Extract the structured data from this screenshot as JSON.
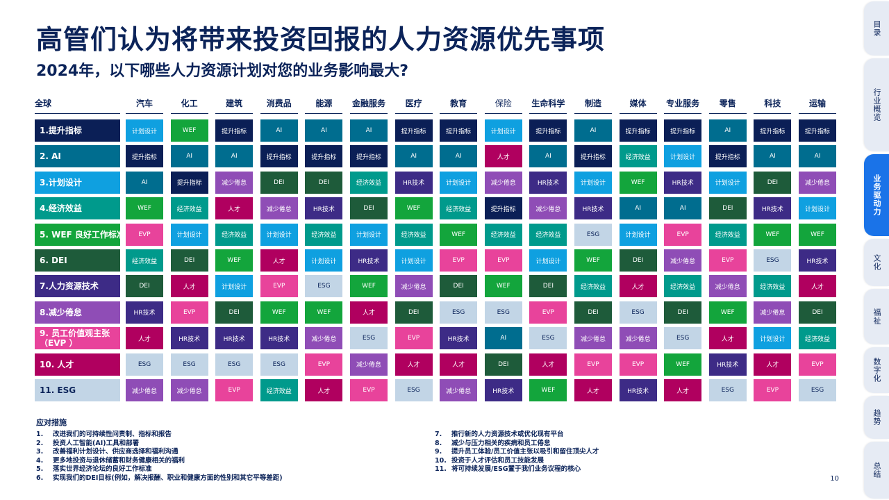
{
  "title": "高管们认为将带来投资回报的人力资源优先事项",
  "subtitle": "2024年，以下哪些人力资源计划对您的业务影响最大?",
  "table": {
    "corner": "全球",
    "columns": [
      "汽车",
      "化工",
      "建筑",
      "消费品",
      "能源",
      "金融服务",
      "医疗",
      "教育",
      "保险",
      "生命科学",
      "制造",
      "媒体",
      "专业服务",
      "零售",
      "科技",
      "运输"
    ],
    "rows": [
      {
        "label": "1.提升指标",
        "cells": [
          "计划设计",
          "WEF",
          "提升指标",
          "AI",
          "AI",
          "AI",
          "提升指标",
          "提升指标",
          "计划设计",
          "提升指标",
          "AI",
          "提升指标",
          "提升指标",
          "AI",
          "提升指标",
          "提升指标"
        ]
      },
      {
        "label": "2. AI",
        "cells": [
          "提升指标",
          "AI",
          "AI",
          "提升指标",
          "提升指标",
          "提升指标",
          "AI",
          "AI",
          "人才",
          "AI",
          "提升指标",
          "经济效益",
          "计划设计",
          "提升指标",
          "AI",
          "AI"
        ]
      },
      {
        "label": "3.计划设计",
        "cells": [
          "AI",
          "提升指标",
          "减少倦怠",
          "DEI",
          "DEI",
          "经济效益",
          "HR技术",
          "计划设计",
          "减少倦怠",
          "HR技术",
          "计划设计",
          "WEF",
          "HR技术",
          "计划设计",
          "DEI",
          "减少倦怠"
        ]
      },
      {
        "label": "4.经济效益",
        "cells": [
          "WEF",
          "经济效益",
          "人才",
          "减少倦怠",
          "HR技术",
          "DEI",
          "WEF",
          "经济效益",
          "提升指标",
          "减少倦怠",
          "HR技术",
          "AI",
          "AI",
          "DEI",
          "HR技术",
          "计划设计"
        ]
      },
      {
        "label": "5. WEF 良好工作标准",
        "cells": [
          "EVP",
          "计划设计",
          "经济效益",
          "计划设计",
          "经济效益",
          "计划设计",
          "经济效益",
          "WEF",
          "经济效益",
          "经济效益",
          "ESG",
          "计划设计",
          "EVP",
          "经济效益",
          "WEF",
          "WEF"
        ]
      },
      {
        "label": "6. DEI",
        "cells": [
          "经济效益",
          "DEI",
          "WEF",
          "人才",
          "计划设计",
          "HR技术",
          "计划设计",
          "EVP",
          "EVP",
          "计划设计",
          "WEF",
          "DEI",
          "减少倦怠",
          "EVP",
          "ESG",
          "HR技术"
        ]
      },
      {
        "label": "7.人力资源技术",
        "cells": [
          "DEI",
          "人才",
          "计划设计",
          "EVP",
          "ESG",
          "WEF",
          "减少倦怠",
          "DEI",
          "WEF",
          "DEI",
          "经济效益",
          "人才",
          "经济效益",
          "减少倦怠",
          "经济效益",
          "人才"
        ]
      },
      {
        "label": "8.减少倦怠",
        "cells": [
          "HR技术",
          "EVP",
          "DEI",
          "WEF",
          "WEF",
          "人才",
          "DEI",
          "ESG",
          "ESG",
          "EVP",
          "DEI",
          "ESG",
          "DEI",
          "WEF",
          "减少倦怠",
          "DEI"
        ]
      },
      {
        "label_line1": "9. 员工价值观主张",
        "label_line2": "（EVP ）",
        "cells": [
          "人才",
          "HR技术",
          "HR技术",
          "HR技术",
          "减少倦怠",
          "ESG",
          "EVP",
          "HR技术",
          "AI",
          "ESG",
          "减少倦怠",
          "减少倦怠",
          "ESG",
          "人才",
          "计划设计",
          "经济效益"
        ]
      },
      {
        "label": "10. 人才",
        "cells": [
          "ESG",
          "ESG",
          "ESG",
          "ESG",
          "EVP",
          "减少倦怠",
          "人才",
          "人才",
          "DEI",
          "人才",
          "EVP",
          "EVP",
          "WEF",
          "HR技术",
          "人才",
          "EVP"
        ]
      },
      {
        "label": "11. ESG",
        "cells": [
          "减少倦怠",
          "减少倦怠",
          "EVP",
          "经济效益",
          "人才",
          "EVP",
          "ESG",
          "减少倦怠",
          "HR技术",
          "WEF",
          "人才",
          "HR技术",
          "人才",
          "ESG",
          "EVP",
          "ESG"
        ]
      }
    ]
  },
  "colors": {
    "提升指标": "#0b1f56",
    "AI": "#006d8f",
    "计划设计": "#0fa0e0",
    "经济效益": "#009a8c",
    "WEF": "#13a53c",
    "DEI": "#1e5b3a",
    "HR技术": "#3d2b86",
    "减少倦怠": "#8f4db6",
    "EVP": "#e8439b",
    "人才": "#b0005f",
    "ESG": "#c2d5e6"
  },
  "row_label_colors": [
    "#0b1f56",
    "#006d8f",
    "#0fa0e0",
    "#009a8c",
    "#13a53c",
    "#1e5b3a",
    "#3d2b86",
    "#8f4db6",
    "#e8439b",
    "#b0005f",
    "#c2d5e6"
  ],
  "notes": {
    "title": "应对措施",
    "left": [
      {
        "num": "1.",
        "text": "改进我们的可持续性问责制、指标和报告"
      },
      {
        "num": "2.",
        "text": "投资人工智能(AI)工具和部署"
      },
      {
        "num": "3.",
        "text": "改善福利计划设计、供应商选择和福利沟通"
      },
      {
        "num": "4.",
        "text": "更多地投资与退休储蓄和财务健康相关的福利"
      },
      {
        "num": "5.",
        "text": "落实世界经济论坛的良好工作标准"
      },
      {
        "num": "6.",
        "text": "实现我们的DEI目标(例如，解决报酬、职业和健康方面的性别和其它平等差距)"
      }
    ],
    "right": [
      {
        "num": "7.",
        "text": "推行新的人力资源技术或优化现有平台"
      },
      {
        "num": "8.",
        "text": "减少与压力相关的疾病和员工倦怠"
      },
      {
        "num": "9.",
        "text": "提升员工体验/员工价值主张以吸引和留住顶尖人才"
      },
      {
        "num": "10.",
        "text": "投资于人才评估和员工技能发展"
      },
      {
        "num": "11.",
        "text": "将可持续发展/ESG置于我们业务议程的核心"
      }
    ]
  },
  "page_number": "10",
  "side_tabs": [
    {
      "label": "目录",
      "active": false
    },
    {
      "label": "行业概览",
      "active": false
    },
    {
      "label": "业务驱动力",
      "active": true
    },
    {
      "label": "文化",
      "active": false
    },
    {
      "label": "福祉",
      "active": false
    },
    {
      "label": "数字化",
      "active": false
    },
    {
      "label": "趋势",
      "active": false
    },
    {
      "label": "总结",
      "active": false
    }
  ]
}
